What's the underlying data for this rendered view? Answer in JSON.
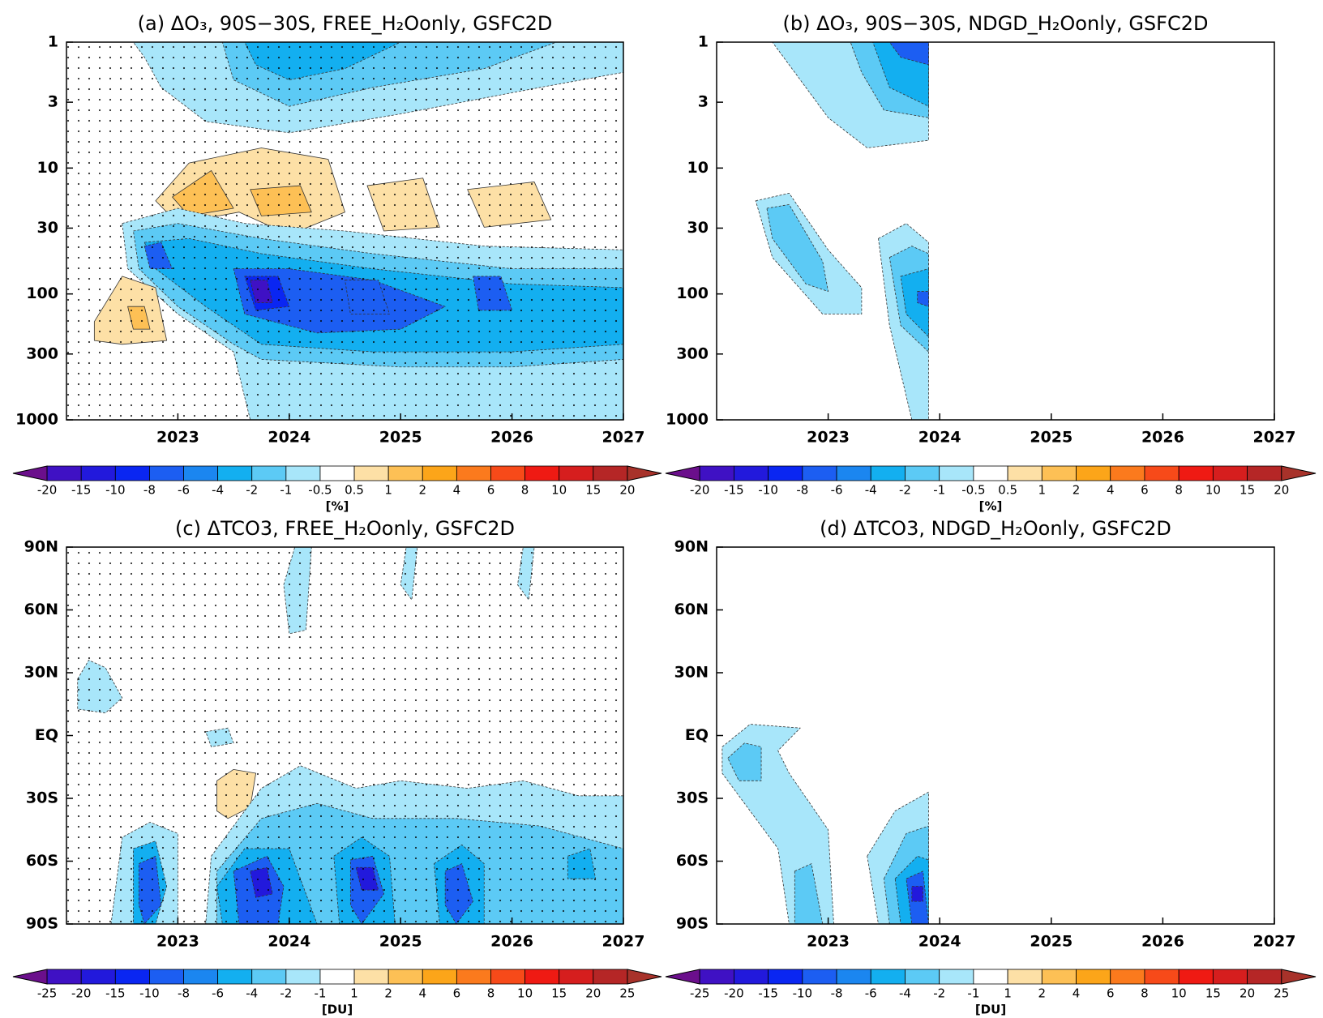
{
  "chart_data": [
    {
      "type": "contour",
      "title": "(a) ΔO₃, 90S−30S, FREE_H₂Oonly, GSFC2D",
      "xlim": [
        2022,
        2027
      ],
      "xticks": [
        2023,
        2024,
        2025,
        2026,
        2027
      ],
      "ylim": [
        1000,
        1
      ],
      "ylog": true,
      "yticks": [
        1,
        3,
        10,
        30,
        100,
        300,
        1000
      ],
      "stippled": true,
      "colorbar": {
        "label": "[%]",
        "levels": [
          -20,
          -15,
          -10,
          -8,
          -6,
          -4,
          -2,
          -1,
          -0.5,
          0.5,
          1,
          2,
          4,
          6,
          8,
          10,
          15,
          20
        ],
        "colors": [
          "#6b0f8c",
          "#3f11c4",
          "#2219dc",
          "#0a26f2",
          "#1c5ef2",
          "#1b86f0",
          "#13aff0",
          "#5ccaf5",
          "#a8e6fa",
          "#ffffff",
          "#fde0a6",
          "#fdc055",
          "#fca519",
          "#fb7a1d",
          "#f74a19",
          "#ef1a13",
          "#d61e1e",
          "#b52626",
          "#a8322a"
        ]
      }
    },
    {
      "type": "contour",
      "title": "(b) ΔO₃, 90S−30S, NDGD_H₂Oonly, GSFC2D",
      "xlim": [
        2022,
        2027
      ],
      "xticks": [
        2023,
        2024,
        2025,
        2026,
        2027
      ],
      "ylim": [
        1000,
        1
      ],
      "ylog": true,
      "yticks": [
        1,
        3,
        10,
        30,
        100,
        300,
        1000
      ],
      "stippled": false,
      "colorbar": {
        "label": "[%]",
        "levels": [
          -20,
          -15,
          -10,
          -8,
          -6,
          -4,
          -2,
          -1,
          -0.5,
          0.5,
          1,
          2,
          4,
          6,
          8,
          10,
          15,
          20
        ],
        "colors": [
          "#6b0f8c",
          "#3f11c4",
          "#2219dc",
          "#0a26f2",
          "#1c5ef2",
          "#1b86f0",
          "#13aff0",
          "#5ccaf5",
          "#a8e6fa",
          "#ffffff",
          "#fde0a6",
          "#fdc055",
          "#fca519",
          "#fb7a1d",
          "#f74a19",
          "#ef1a13",
          "#d61e1e",
          "#b52626",
          "#a8322a"
        ]
      }
    },
    {
      "type": "contour",
      "title": "(c) ΔTCO3, FREE_H₂Oonly, GSFC2D",
      "xlim": [
        2022,
        2027
      ],
      "xticks": [
        2023,
        2024,
        2025,
        2026,
        2027
      ],
      "ylim": [
        -90,
        90
      ],
      "ylog": false,
      "yticks": [
        {
          "value": 90,
          "label": "90N"
        },
        {
          "value": 60,
          "label": "60N"
        },
        {
          "value": 30,
          "label": "30N"
        },
        {
          "value": 0,
          "label": "EQ"
        },
        {
          "value": -30,
          "label": "30S"
        },
        {
          "value": -60,
          "label": "60S"
        },
        {
          "value": -90,
          "label": "90S"
        }
      ],
      "stippled": true,
      "colorbar": {
        "label": "[DU]",
        "levels": [
          -25,
          -20,
          -15,
          -10,
          -8,
          -6,
          -4,
          -2,
          -1,
          1,
          2,
          4,
          6,
          8,
          10,
          15,
          20,
          25
        ],
        "colors": [
          "#6b0f8c",
          "#3f11c4",
          "#2219dc",
          "#0a26f2",
          "#1c5ef2",
          "#1b86f0",
          "#13aff0",
          "#5ccaf5",
          "#a8e6fa",
          "#ffffff",
          "#fde0a6",
          "#fdc055",
          "#fca519",
          "#fb7a1d",
          "#f74a19",
          "#ef1a13",
          "#d61e1e",
          "#b52626",
          "#a8322a"
        ]
      }
    },
    {
      "type": "contour",
      "title": "(d) ΔTCO3, NDGD_H₂Oonly, GSFC2D",
      "xlim": [
        2022,
        2027
      ],
      "xticks": [
        2023,
        2024,
        2025,
        2026,
        2027
      ],
      "ylim": [
        -90,
        90
      ],
      "ylog": false,
      "yticks": [
        {
          "value": 90,
          "label": "90N"
        },
        {
          "value": 60,
          "label": "60N"
        },
        {
          "value": 30,
          "label": "30N"
        },
        {
          "value": 0,
          "label": "EQ"
        },
        {
          "value": -30,
          "label": "30S"
        },
        {
          "value": -60,
          "label": "60S"
        },
        {
          "value": -90,
          "label": "90S"
        }
      ],
      "stippled": false,
      "colorbar": {
        "label": "[DU]",
        "levels": [
          -25,
          -20,
          -15,
          -10,
          -8,
          -6,
          -4,
          -2,
          -1,
          1,
          2,
          4,
          6,
          8,
          10,
          15,
          20,
          25
        ],
        "colors": [
          "#6b0f8c",
          "#3f11c4",
          "#2219dc",
          "#0a26f2",
          "#1c5ef2",
          "#1b86f0",
          "#13aff0",
          "#5ccaf5",
          "#a8e6fa",
          "#ffffff",
          "#fde0a6",
          "#fdc055",
          "#fca519",
          "#fb7a1d",
          "#f74a19",
          "#ef1a13",
          "#d61e1e",
          "#b52626",
          "#a8322a"
        ]
      }
    }
  ]
}
